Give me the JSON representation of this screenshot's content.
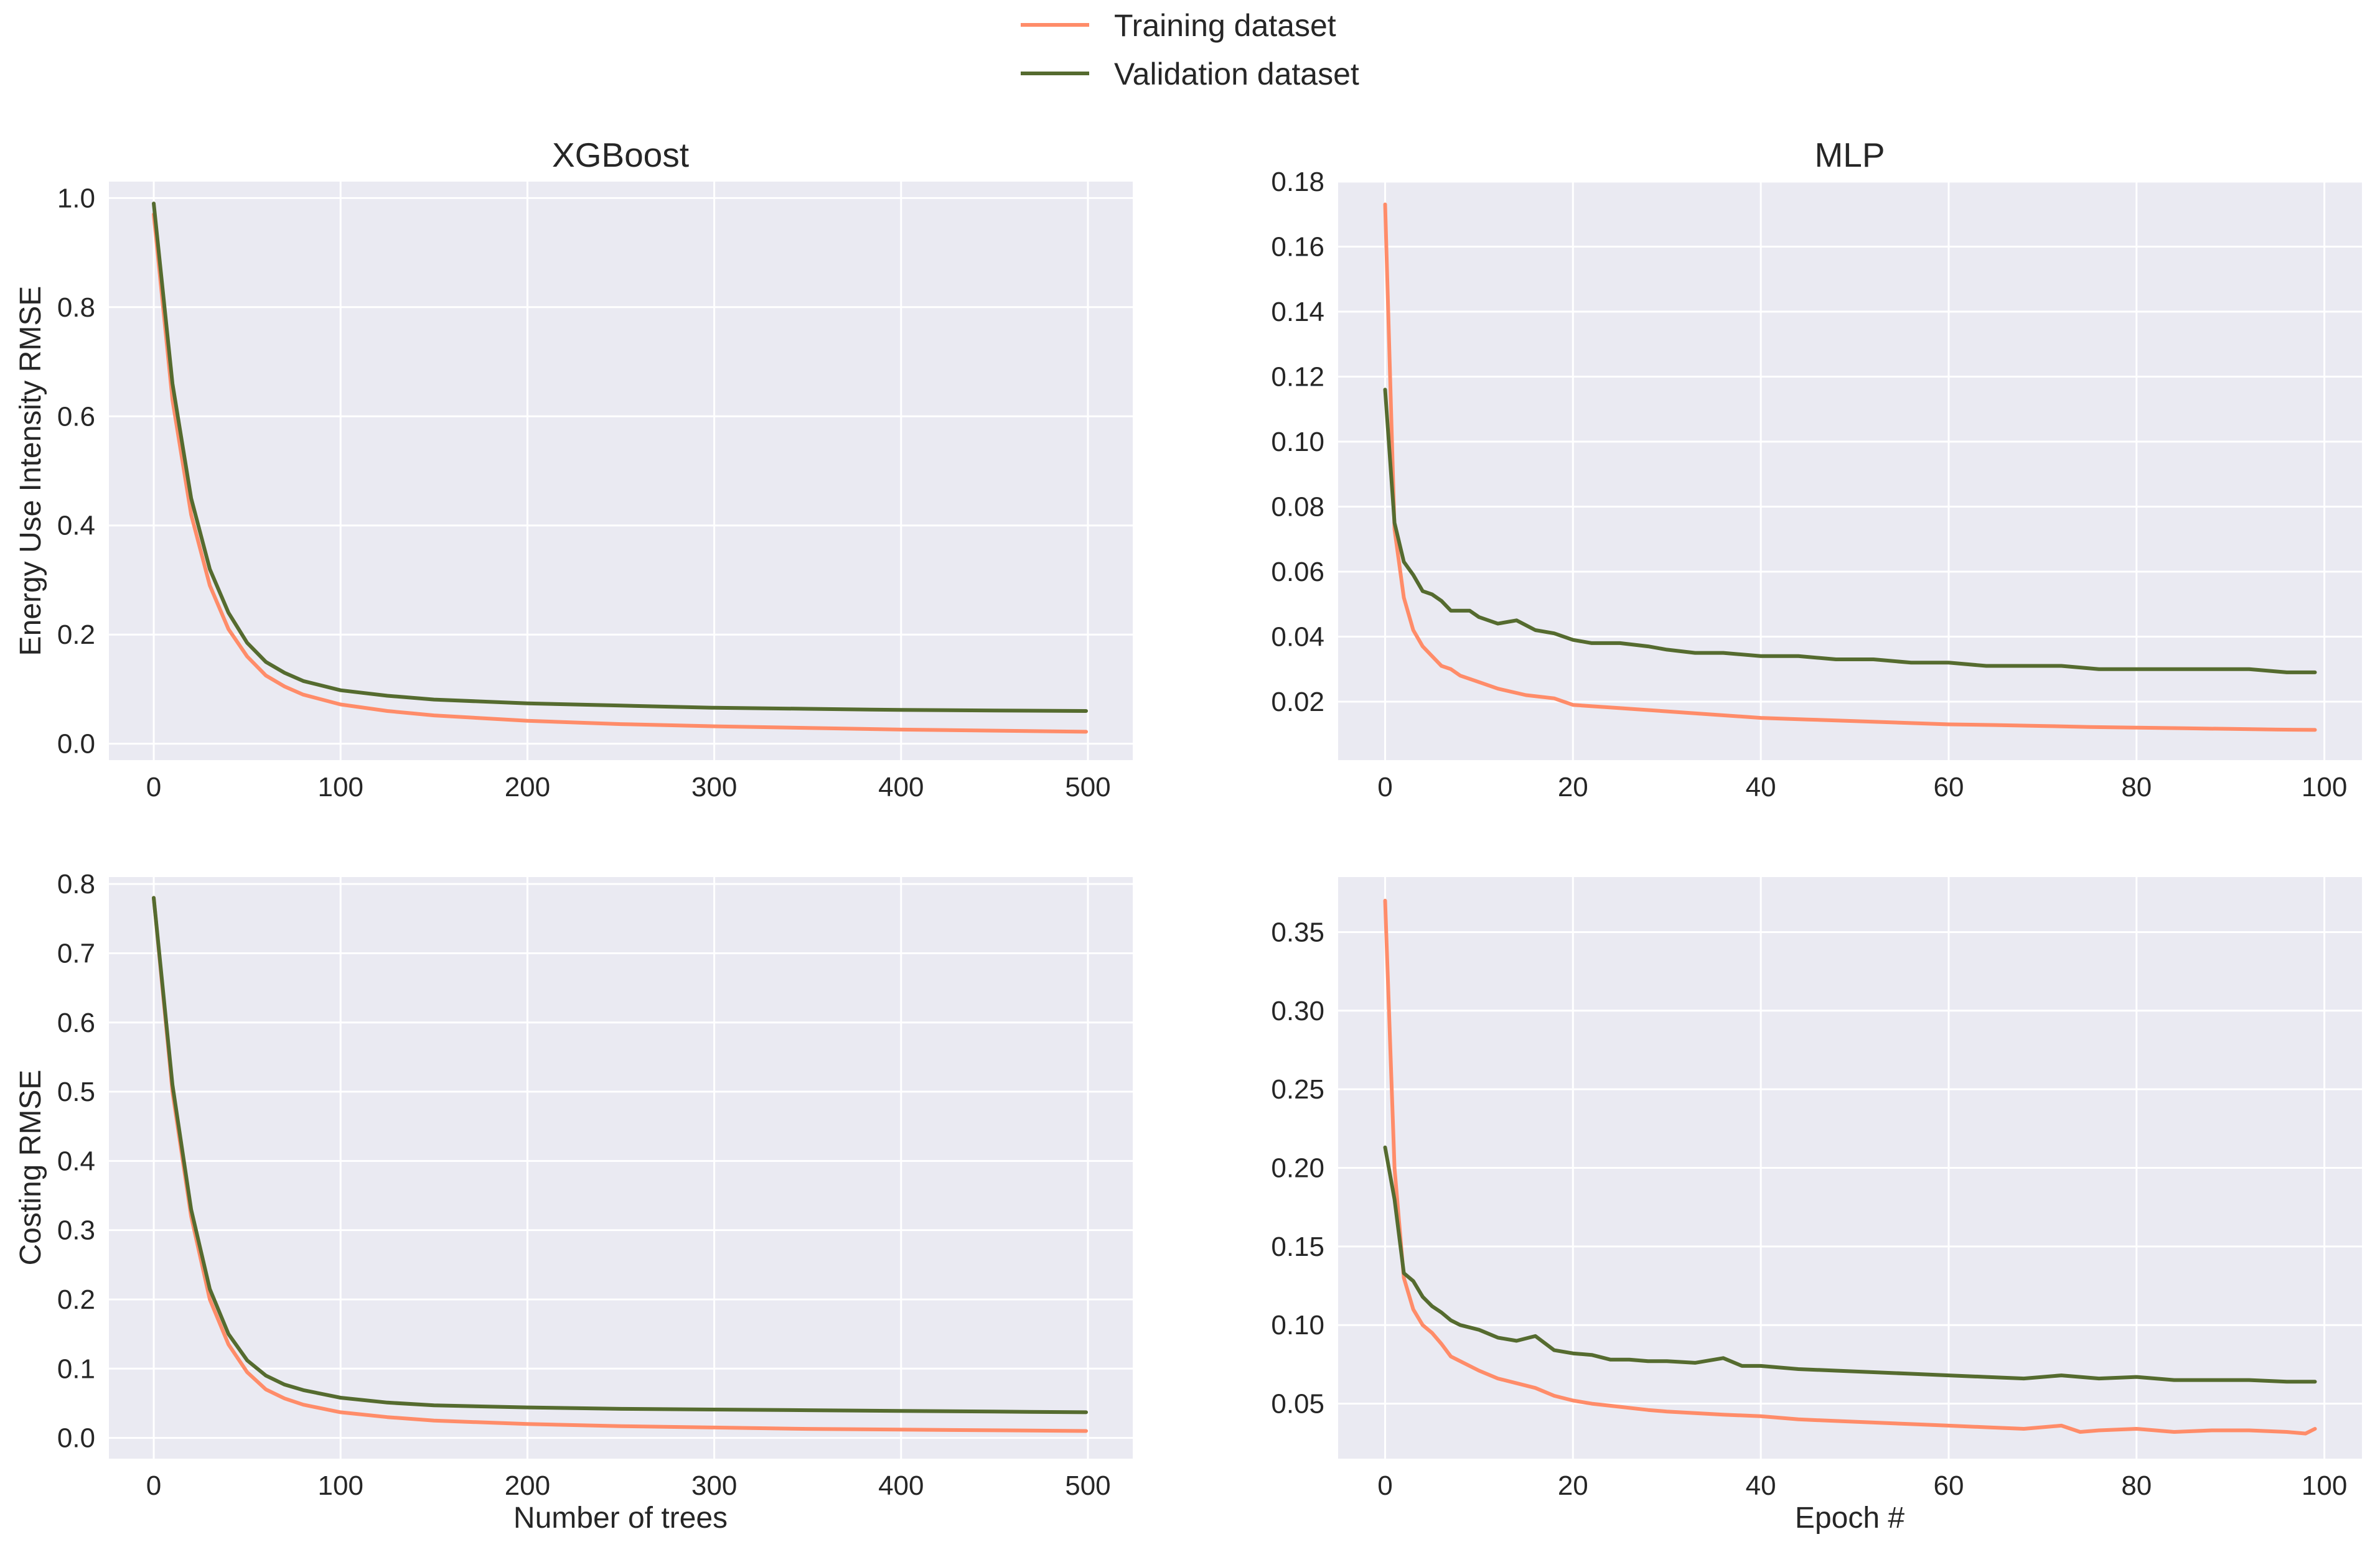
{
  "legend": {
    "items": [
      {
        "label": "Training dataset",
        "color": "#ff8c69"
      },
      {
        "label": "Validation dataset",
        "color": "#556b2f"
      }
    ]
  },
  "chart_data": [
    {
      "type": "line",
      "title": "XGBoost",
      "xlabel": "",
      "ylabel": "Energy Use Intensity RMSE",
      "xlim": [
        -24,
        524
      ],
      "ylim": [
        -0.03,
        1.03
      ],
      "xticks": [
        0,
        100,
        200,
        300,
        400,
        500
      ],
      "xtick_labels": [
        "0",
        "100",
        "200",
        "300",
        "400",
        "500"
      ],
      "yticks": [
        0.0,
        0.2,
        0.4,
        0.6,
        0.8,
        1.0
      ],
      "ytick_labels": [
        "0.0",
        "0.2",
        "0.4",
        "0.6",
        "0.8",
        "1.0"
      ],
      "grid": true,
      "series": [
        {
          "name": "Training dataset",
          "color": "#ff8c69",
          "x": [
            0,
            10,
            20,
            30,
            40,
            50,
            60,
            70,
            80,
            100,
            125,
            150,
            200,
            250,
            300,
            350,
            400,
            450,
            499
          ],
          "y": [
            0.97,
            0.63,
            0.42,
            0.29,
            0.21,
            0.16,
            0.125,
            0.105,
            0.09,
            0.072,
            0.06,
            0.052,
            0.042,
            0.036,
            0.032,
            0.029,
            0.026,
            0.024,
            0.022
          ]
        },
        {
          "name": "Validation dataset",
          "color": "#556b2f",
          "x": [
            0,
            10,
            20,
            30,
            40,
            50,
            60,
            70,
            80,
            100,
            125,
            150,
            200,
            250,
            300,
            350,
            400,
            450,
            499
          ],
          "y": [
            0.99,
            0.66,
            0.45,
            0.32,
            0.24,
            0.185,
            0.15,
            0.13,
            0.115,
            0.098,
            0.088,
            0.081,
            0.074,
            0.07,
            0.066,
            0.064,
            0.062,
            0.061,
            0.06
          ]
        }
      ]
    },
    {
      "type": "line",
      "title": "MLP",
      "xlabel": "",
      "ylabel": "",
      "xlim": [
        -5,
        104
      ],
      "ylim": [
        0.002,
        0.18
      ],
      "xticks": [
        0,
        20,
        40,
        60,
        80,
        100
      ],
      "xtick_labels": [
        "0",
        "20",
        "40",
        "60",
        "80",
        "100"
      ],
      "yticks": [
        0.02,
        0.04,
        0.06,
        0.08,
        0.1,
        0.12,
        0.14,
        0.16,
        0.18
      ],
      "ytick_labels": [
        "0.02",
        "0.04",
        "0.06",
        "0.08",
        "0.10",
        "0.12",
        "0.14",
        "0.16",
        "0.18"
      ],
      "grid": true,
      "series": [
        {
          "name": "Training dataset",
          "color": "#ff8c69",
          "x": [
            0,
            1,
            2,
            3,
            4,
            5,
            6,
            7,
            8,
            10,
            12,
            15,
            18,
            20,
            25,
            30,
            35,
            40,
            45,
            50,
            55,
            60,
            65,
            70,
            75,
            80,
            85,
            90,
            95,
            99
          ],
          "y": [
            0.173,
            0.073,
            0.052,
            0.042,
            0.037,
            0.034,
            0.031,
            0.03,
            0.028,
            0.026,
            0.024,
            0.022,
            0.021,
            0.019,
            0.018,
            0.017,
            0.016,
            0.015,
            0.0145,
            0.014,
            0.0135,
            0.013,
            0.0128,
            0.0125,
            0.0122,
            0.012,
            0.0118,
            0.0116,
            0.0114,
            0.0113
          ]
        },
        {
          "name": "Validation dataset",
          "color": "#556b2f",
          "x": [
            0,
            1,
            2,
            3,
            4,
            5,
            6,
            7,
            8,
            9,
            10,
            12,
            14,
            16,
            18,
            20,
            22,
            25,
            28,
            30,
            33,
            36,
            40,
            44,
            48,
            52,
            56,
            60,
            64,
            68,
            72,
            76,
            80,
            84,
            88,
            92,
            96,
            99
          ],
          "y": [
            0.116,
            0.075,
            0.063,
            0.059,
            0.054,
            0.053,
            0.051,
            0.048,
            0.048,
            0.048,
            0.046,
            0.044,
            0.045,
            0.042,
            0.041,
            0.039,
            0.038,
            0.038,
            0.037,
            0.036,
            0.035,
            0.035,
            0.034,
            0.034,
            0.033,
            0.033,
            0.032,
            0.032,
            0.031,
            0.031,
            0.031,
            0.03,
            0.03,
            0.03,
            0.03,
            0.03,
            0.029,
            0.029
          ]
        }
      ]
    },
    {
      "type": "line",
      "title": "",
      "xlabel": "Number of trees",
      "ylabel": "Costing RMSE",
      "xlim": [
        -24,
        524
      ],
      "ylim": [
        -0.03,
        0.81
      ],
      "xticks": [
        0,
        100,
        200,
        300,
        400,
        500
      ],
      "xtick_labels": [
        "0",
        "100",
        "200",
        "300",
        "400",
        "500"
      ],
      "yticks": [
        0.0,
        0.1,
        0.2,
        0.3,
        0.4,
        0.5,
        0.6,
        0.7,
        0.8
      ],
      "ytick_labels": [
        "0.0",
        "0.1",
        "0.2",
        "0.3",
        "0.4",
        "0.5",
        "0.6",
        "0.7",
        "0.8"
      ],
      "grid": true,
      "series": [
        {
          "name": "Training dataset",
          "color": "#ff8c69",
          "x": [
            0,
            10,
            20,
            30,
            40,
            50,
            60,
            70,
            80,
            100,
            125,
            150,
            200,
            250,
            300,
            350,
            400,
            450,
            499
          ],
          "y": [
            0.78,
            0.5,
            0.32,
            0.2,
            0.135,
            0.095,
            0.07,
            0.057,
            0.048,
            0.037,
            0.03,
            0.025,
            0.02,
            0.017,
            0.015,
            0.013,
            0.012,
            0.011,
            0.01
          ]
        },
        {
          "name": "Validation dataset",
          "color": "#556b2f",
          "x": [
            0,
            10,
            20,
            30,
            40,
            50,
            60,
            70,
            80,
            100,
            125,
            150,
            200,
            250,
            300,
            350,
            400,
            450,
            499
          ],
          "y": [
            0.78,
            0.51,
            0.33,
            0.215,
            0.15,
            0.112,
            0.09,
            0.077,
            0.069,
            0.058,
            0.051,
            0.047,
            0.044,
            0.042,
            0.041,
            0.04,
            0.039,
            0.038,
            0.037
          ]
        }
      ]
    },
    {
      "type": "line",
      "title": "",
      "xlabel": "Epoch #",
      "ylabel": "",
      "xlim": [
        -5,
        104
      ],
      "ylim": [
        0.015,
        0.385
      ],
      "xticks": [
        0,
        20,
        40,
        60,
        80,
        100
      ],
      "xtick_labels": [
        "0",
        "20",
        "40",
        "60",
        "80",
        "100"
      ],
      "yticks": [
        0.05,
        0.1,
        0.15,
        0.2,
        0.25,
        0.3,
        0.35
      ],
      "ytick_labels": [
        "0.05",
        "0.10",
        "0.15",
        "0.20",
        "0.25",
        "0.30",
        "0.35"
      ],
      "grid": true,
      "series": [
        {
          "name": "Training dataset",
          "color": "#ff8c69",
          "x": [
            0,
            1,
            2,
            3,
            4,
            5,
            6,
            7,
            8,
            10,
            12,
            14,
            16,
            18,
            20,
            22,
            25,
            28,
            30,
            33,
            36,
            40,
            44,
            48,
            52,
            56,
            60,
            64,
            68,
            72,
            74,
            76,
            80,
            84,
            88,
            92,
            96,
            98,
            99
          ],
          "y": [
            0.37,
            0.2,
            0.13,
            0.11,
            0.1,
            0.095,
            0.088,
            0.08,
            0.077,
            0.071,
            0.066,
            0.063,
            0.06,
            0.055,
            0.052,
            0.05,
            0.048,
            0.046,
            0.045,
            0.044,
            0.043,
            0.042,
            0.04,
            0.039,
            0.038,
            0.037,
            0.036,
            0.035,
            0.034,
            0.036,
            0.032,
            0.033,
            0.034,
            0.032,
            0.033,
            0.033,
            0.032,
            0.031,
            0.034
          ]
        },
        {
          "name": "Validation dataset",
          "color": "#556b2f",
          "x": [
            0,
            1,
            2,
            3,
            4,
            5,
            6,
            7,
            8,
            10,
            12,
            14,
            16,
            18,
            20,
            22,
            24,
            26,
            28,
            30,
            33,
            36,
            38,
            40,
            44,
            48,
            52,
            56,
            60,
            64,
            68,
            72,
            76,
            80,
            84,
            88,
            92,
            96,
            99
          ],
          "y": [
            0.213,
            0.18,
            0.133,
            0.128,
            0.118,
            0.112,
            0.108,
            0.103,
            0.1,
            0.097,
            0.092,
            0.09,
            0.093,
            0.084,
            0.082,
            0.081,
            0.078,
            0.078,
            0.077,
            0.077,
            0.076,
            0.079,
            0.074,
            0.074,
            0.072,
            0.071,
            0.07,
            0.069,
            0.068,
            0.067,
            0.066,
            0.068,
            0.066,
            0.067,
            0.065,
            0.065,
            0.065,
            0.064,
            0.064
          ]
        }
      ]
    }
  ]
}
